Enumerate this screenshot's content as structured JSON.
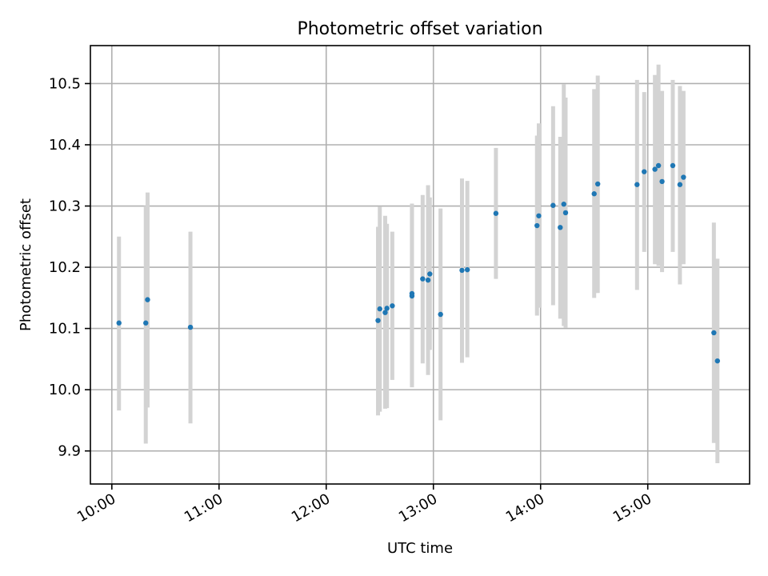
{
  "chart_data": {
    "type": "scatter",
    "title": "Photometric offset variation",
    "xlabel": "UTC time",
    "ylabel": "Photometric offset",
    "x_unit": "hours (UTC)",
    "xlim": [
      "09:48",
      "15:57"
    ],
    "ylim": [
      9.846,
      10.562
    ],
    "x_ticks": [
      "10:00",
      "11:00",
      "12:00",
      "13:00",
      "14:00",
      "15:00"
    ],
    "y_ticks": [
      "9.9",
      "10.0",
      "10.1",
      "10.2",
      "10.3",
      "10.4",
      "10.5"
    ],
    "grid": true,
    "colors": {
      "point": "#1f77b4",
      "errorbar": "#d3d3d3",
      "grid": "#b0b0b0"
    },
    "points": [
      {
        "x": "10:04",
        "y": 10.109,
        "lo": 9.966,
        "hi": 10.25
      },
      {
        "x": "10:19",
        "y": 10.109,
        "lo": 9.912,
        "hi": 10.3
      },
      {
        "x": "10:20",
        "y": 10.147,
        "lo": 9.971,
        "hi": 10.322
      },
      {
        "x": "10:44",
        "y": 10.102,
        "lo": 9.945,
        "hi": 10.258
      },
      {
        "x": "12:29",
        "y": 10.113,
        "lo": 9.958,
        "hi": 10.266
      },
      {
        "x": "12:30",
        "y": 10.132,
        "lo": 9.964,
        "hi": 10.299
      },
      {
        "x": "12:33",
        "y": 10.126,
        "lo": 9.969,
        "hi": 10.284
      },
      {
        "x": "12:34",
        "y": 10.133,
        "lo": 9.97,
        "hi": 10.271
      },
      {
        "x": "12:37",
        "y": 10.137,
        "lo": 10.016,
        "hi": 10.258
      },
      {
        "x": "12:48",
        "y": 10.153,
        "lo": 10.004,
        "hi": 10.304
      },
      {
        "x": "12:48",
        "y": 10.157,
        "lo": 10.008,
        "hi": 10.302
      },
      {
        "x": "12:54",
        "y": 10.181,
        "lo": 10.043,
        "hi": 10.318
      },
      {
        "x": "12:57",
        "y": 10.179,
        "lo": 10.024,
        "hi": 10.334
      },
      {
        "x": "12:58",
        "y": 10.189,
        "lo": 10.065,
        "hi": 10.314
      },
      {
        "x": "13:04",
        "y": 10.123,
        "lo": 9.95,
        "hi": 10.296
      },
      {
        "x": "13:16",
        "y": 10.195,
        "lo": 10.044,
        "hi": 10.345
      },
      {
        "x": "13:19",
        "y": 10.196,
        "lo": 10.053,
        "hi": 10.341
      },
      {
        "x": "13:35",
        "y": 10.288,
        "lo": 10.181,
        "hi": 10.395
      },
      {
        "x": "13:58",
        "y": 10.268,
        "lo": 10.121,
        "hi": 10.415
      },
      {
        "x": "13:59",
        "y": 10.284,
        "lo": 10.134,
        "hi": 10.435
      },
      {
        "x": "14:07",
        "y": 10.301,
        "lo": 10.138,
        "hi": 10.463
      },
      {
        "x": "14:11",
        "y": 10.265,
        "lo": 10.116,
        "hi": 10.413
      },
      {
        "x": "14:13",
        "y": 10.303,
        "lo": 10.104,
        "hi": 10.499
      },
      {
        "x": "14:14",
        "y": 10.289,
        "lo": 10.101,
        "hi": 10.477
      },
      {
        "x": "14:30",
        "y": 10.32,
        "lo": 10.15,
        "hi": 10.491
      },
      {
        "x": "14:32",
        "y": 10.336,
        "lo": 10.158,
        "hi": 10.513
      },
      {
        "x": "14:54",
        "y": 10.335,
        "lo": 10.163,
        "hi": 10.506
      },
      {
        "x": "14:58",
        "y": 10.356,
        "lo": 10.225,
        "hi": 10.486
      },
      {
        "x": "15:04",
        "y": 10.36,
        "lo": 10.205,
        "hi": 10.514
      },
      {
        "x": "15:06",
        "y": 10.366,
        "lo": 10.202,
        "hi": 10.531
      },
      {
        "x": "15:08",
        "y": 10.34,
        "lo": 10.192,
        "hi": 10.488
      },
      {
        "x": "15:14",
        "y": 10.366,
        "lo": 10.225,
        "hi": 10.506
      },
      {
        "x": "15:18",
        "y": 10.335,
        "lo": 10.172,
        "hi": 10.496
      },
      {
        "x": "15:20",
        "y": 10.347,
        "lo": 10.205,
        "hi": 10.488
      },
      {
        "x": "15:37",
        "y": 10.093,
        "lo": 9.913,
        "hi": 10.273
      },
      {
        "x": "15:39",
        "y": 10.047,
        "lo": 9.88,
        "hi": 10.214
      }
    ]
  }
}
